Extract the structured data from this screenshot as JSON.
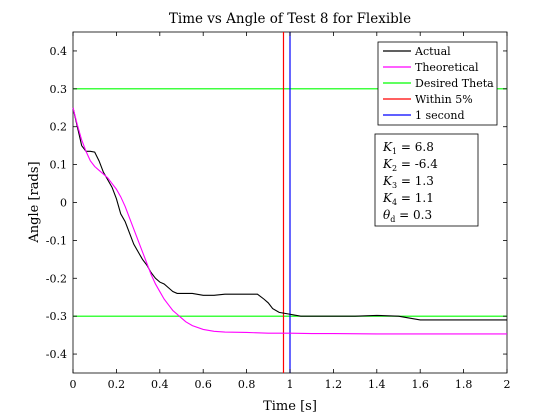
{
  "chart_data": {
    "type": "line",
    "title": "Time vs Angle of Test 8 for Flexible",
    "xlabel": "Time [s]",
    "ylabel": "Angle [rads]",
    "xlim": [
      0,
      2
    ],
    "ylim": [
      -0.45,
      0.45
    ],
    "xticks": [
      0,
      0.2,
      0.4,
      0.6,
      0.8,
      1,
      1.2,
      1.4,
      1.6,
      1.8,
      2
    ],
    "xtick_labels": [
      "0",
      "0.2",
      "0.4",
      "0.6",
      "0.8",
      "1",
      "1.2",
      "1.4",
      "1.6",
      "1.8",
      "2"
    ],
    "yticks": [
      0.4,
      0.3,
      0.2,
      0.1,
      0,
      -0.1,
      -0.2,
      -0.3,
      -0.4
    ],
    "ytick_labels": [
      "0.4",
      "0.3",
      "0.2",
      "0.1",
      "0",
      "-0.1",
      "-0.2",
      "-0.3",
      "-0.4"
    ],
    "grid": false,
    "legend_position": "top-right",
    "series": [
      {
        "name": "Actual",
        "color": "#000000",
        "x": [
          0,
          0.02,
          0.04,
          0.06,
          0.08,
          0.1,
          0.12,
          0.14,
          0.16,
          0.18,
          0.2,
          0.22,
          0.24,
          0.26,
          0.28,
          0.3,
          0.32,
          0.34,
          0.36,
          0.38,
          0.4,
          0.42,
          0.44,
          0.46,
          0.48,
          0.5,
          0.52,
          0.55,
          0.6,
          0.65,
          0.7,
          0.75,
          0.8,
          0.85,
          0.88,
          0.9,
          0.92,
          0.95,
          1.0,
          1.05,
          1.1,
          1.2,
          1.3,
          1.4,
          1.5,
          1.55,
          1.6,
          1.7,
          1.8,
          1.9,
          2.0
        ],
        "y": [
          0.25,
          0.2,
          0.15,
          0.135,
          0.135,
          0.133,
          0.11,
          0.08,
          0.06,
          0.04,
          0.01,
          -0.03,
          -0.05,
          -0.08,
          -0.11,
          -0.13,
          -0.15,
          -0.165,
          -0.185,
          -0.2,
          -0.21,
          -0.215,
          -0.225,
          -0.235,
          -0.24,
          -0.24,
          -0.24,
          -0.24,
          -0.245,
          -0.245,
          -0.242,
          -0.242,
          -0.242,
          -0.242,
          -0.255,
          -0.265,
          -0.28,
          -0.29,
          -0.295,
          -0.3,
          -0.3,
          -0.3,
          -0.3,
          -0.298,
          -0.3,
          -0.305,
          -0.31,
          -0.31,
          -0.31,
          -0.31,
          -0.31
        ]
      },
      {
        "name": "Theoretical",
        "color": "#ff00ff",
        "x": [
          0,
          0.02,
          0.04,
          0.06,
          0.08,
          0.1,
          0.12,
          0.14,
          0.16,
          0.18,
          0.2,
          0.22,
          0.24,
          0.26,
          0.28,
          0.3,
          0.32,
          0.34,
          0.36,
          0.38,
          0.4,
          0.42,
          0.44,
          0.46,
          0.48,
          0.5,
          0.52,
          0.55,
          0.6,
          0.65,
          0.7,
          0.8,
          0.9,
          1.0,
          1.1,
          1.2,
          1.4,
          1.6,
          1.8,
          2.0
        ],
        "y": [
          0.25,
          0.205,
          0.165,
          0.135,
          0.11,
          0.095,
          0.085,
          0.075,
          0.065,
          0.05,
          0.035,
          0.015,
          -0.01,
          -0.04,
          -0.07,
          -0.1,
          -0.13,
          -0.16,
          -0.19,
          -0.215,
          -0.235,
          -0.255,
          -0.27,
          -0.285,
          -0.295,
          -0.305,
          -0.315,
          -0.325,
          -0.335,
          -0.34,
          -0.342,
          -0.343,
          -0.345,
          -0.345,
          -0.346,
          -0.346,
          -0.347,
          -0.347,
          -0.347,
          -0.347
        ]
      },
      {
        "name": "Desired Theta",
        "color": "#00ff00",
        "hlines": [
          0.3,
          -0.3
        ]
      },
      {
        "name": "Within 5%",
        "color": "#ff0000",
        "vline": 0.97
      },
      {
        "name": "1 second",
        "color": "#0000ff",
        "vline": 1.0
      }
    ],
    "annotation": {
      "lines": [
        {
          "sym": "K",
          "sub": "1",
          "rest": " = 6.8"
        },
        {
          "sym": "K",
          "sub": "2",
          "rest": " = -6.4"
        },
        {
          "sym": "K",
          "sub": "3",
          "rest": " = 1.3"
        },
        {
          "sym": "K",
          "sub": "4",
          "rest": " = 1.1"
        },
        {
          "sym": "θ",
          "sub": "d",
          "rest": " = 0.3"
        }
      ]
    }
  }
}
